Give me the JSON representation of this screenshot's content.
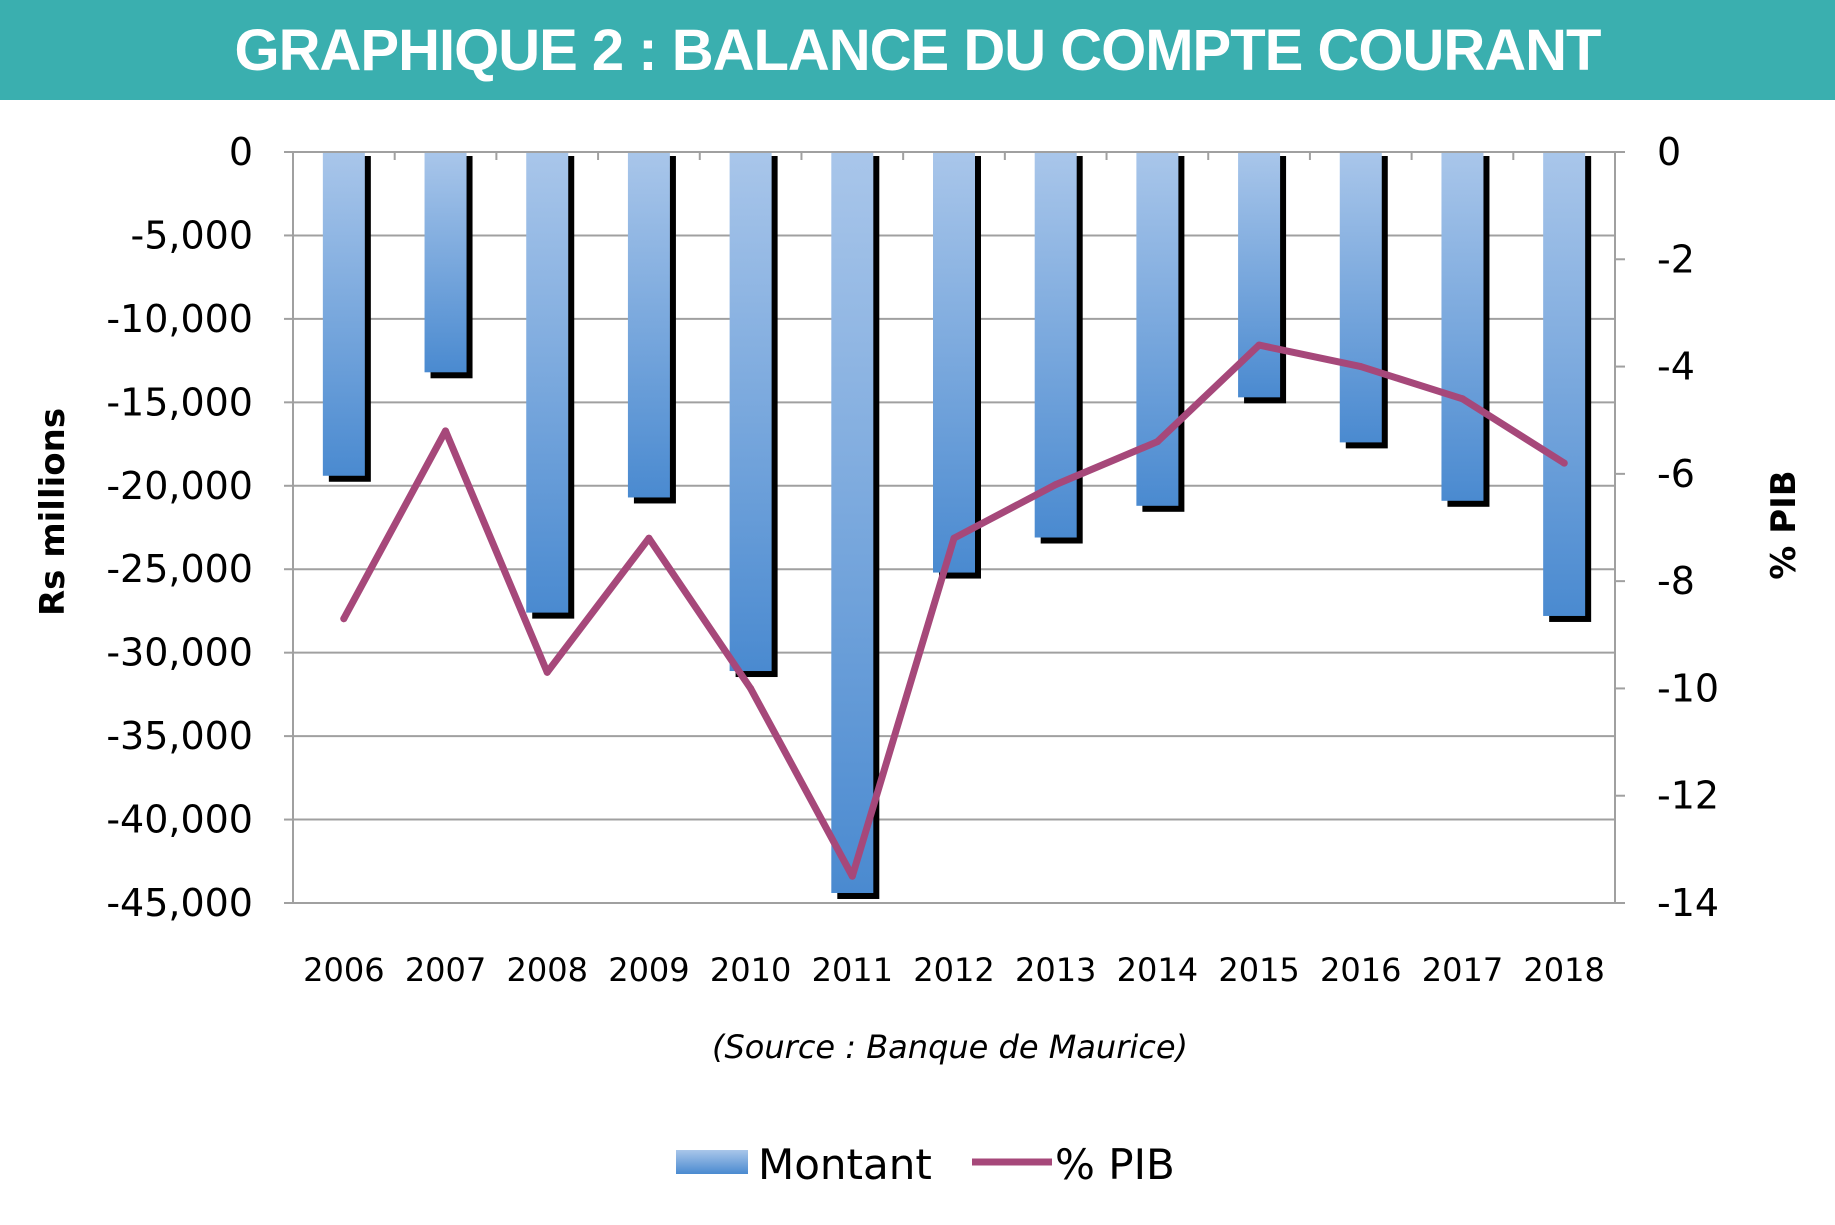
{
  "title": "GRAPHIQUE 2 : BALANCE DU COMPTE COURANT",
  "source": "(Source : Banque de Maurice)",
  "colors": {
    "band": "#3aafaf",
    "bar_light": "#a9c6ea",
    "bar_dark": "#4a8ad0",
    "line": "#a6487a",
    "shadow": "#000000",
    "grid": "#a0a0a0"
  },
  "chart_data": {
    "type": "bar",
    "categories": [
      "2006",
      "2007",
      "2008",
      "2009",
      "2010",
      "2011",
      "2012",
      "2013",
      "2014",
      "2015",
      "2016",
      "2017",
      "2018"
    ],
    "series": [
      {
        "name": "Montant",
        "type": "bar",
        "axis": "left",
        "values": [
          -19400,
          -13200,
          -27600,
          -20700,
          -31100,
          -44400,
          -25200,
          -23100,
          -21200,
          -14700,
          -17400,
          -20900,
          -27800
        ]
      },
      {
        "name": "% PIB",
        "type": "line",
        "axis": "right",
        "values": [
          -8.7,
          -5.2,
          -9.7,
          -7.2,
          -10.0,
          -13.5,
          -7.2,
          -6.2,
          -5.4,
          -3.6,
          -4.0,
          -4.6,
          -5.8
        ]
      }
    ],
    "ylabel": "Rs millions",
    "y2label": "% PIB",
    "ylim": [
      -45000,
      0
    ],
    "y2lim": [
      -14,
      0
    ],
    "yticks": [
      "0",
      "-5,000",
      "-10,000",
      "-15,000",
      "-20,000",
      "-25,000",
      "-30,000",
      "-35,000",
      "-40,000",
      "-45,000"
    ],
    "y2ticks": [
      "0",
      "-2",
      "-4",
      "-6",
      "-8",
      "-10",
      "-12",
      "-14"
    ],
    "grid": true,
    "legend": "bottom"
  }
}
